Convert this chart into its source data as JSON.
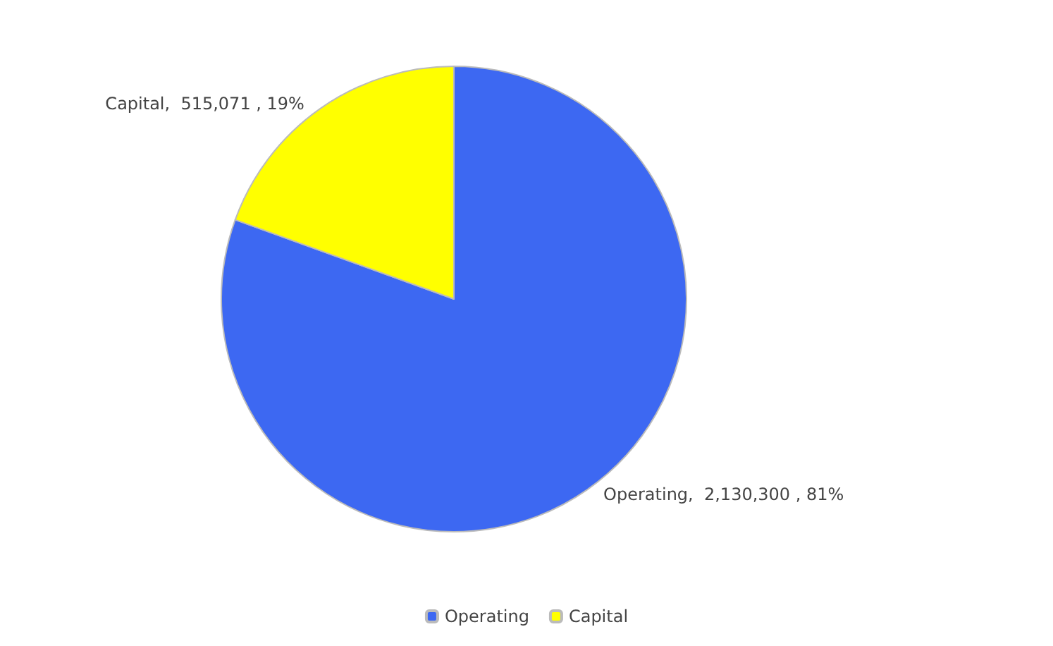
{
  "chart_data": {
    "type": "pie",
    "categories": [
      "Operating",
      "Capital"
    ],
    "values": [
      2130300,
      515071
    ],
    "colors": [
      "#3d68f2",
      "#ffff00"
    ],
    "value_labels": [
      "Operating,  2,130,300 , 81%",
      "Capital,  515,071 , 19%"
    ],
    "legend": "bottom"
  }
}
